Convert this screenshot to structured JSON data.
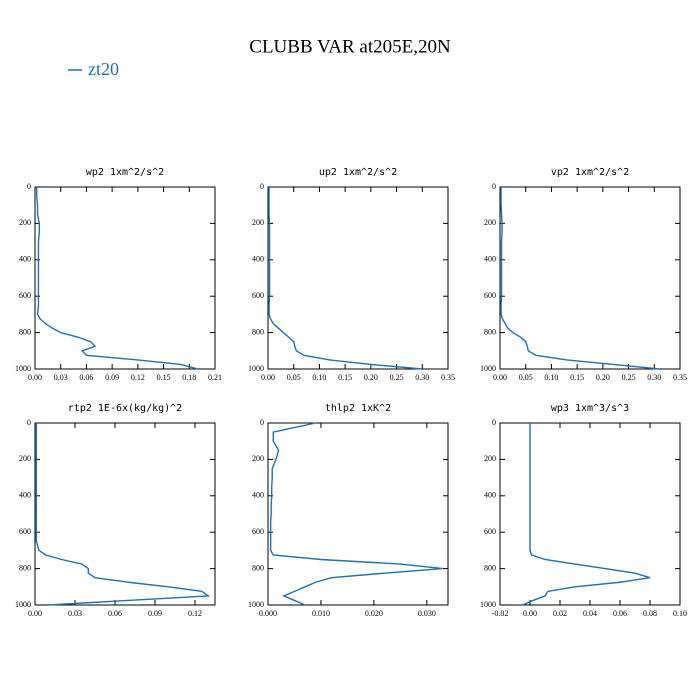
{
  "title": "CLUBB VAR at205E,20N",
  "chart_data": [
    {
      "type": "line",
      "title": "wp2   1xm^2/s^2",
      "invert_y": true,
      "y": [
        0,
        50,
        100,
        150,
        200,
        250,
        300,
        350,
        400,
        450,
        500,
        550,
        600,
        650,
        700,
        725,
        750,
        775,
        800,
        825,
        850,
        875,
        900,
        925,
        950,
        975,
        1000
      ],
      "series": [
        {
          "name": "zt20",
          "color": "#1f6fb4",
          "values": [
            0.002,
            0.002,
            0.003,
            0.003,
            0.005,
            0.005,
            0.004,
            0.004,
            0.004,
            0.004,
            0.004,
            0.004,
            0.004,
            0.004,
            0.003,
            0.006,
            0.012,
            0.02,
            0.03,
            0.05,
            0.065,
            0.07,
            0.055,
            0.06,
            0.12,
            0.17,
            0.19
          ]
        }
      ],
      "xlim": [
        0,
        0.21
      ],
      "xticks": [
        {
          "value": 0,
          "label": "0.00"
        },
        0.03,
        0.06,
        0.09,
        0.12,
        0.15,
        0.18,
        0.21
      ],
      "ylim": [
        0,
        1000
      ],
      "yticks": [
        0,
        200,
        400,
        600,
        800,
        1000
      ]
    },
    {
      "type": "line",
      "title": "up2   1xm^2/s^2",
      "invert_y": true,
      "y": [
        0,
        50,
        100,
        150,
        200,
        250,
        300,
        350,
        400,
        450,
        500,
        550,
        600,
        650,
        700,
        725,
        750,
        775,
        800,
        825,
        850,
        875,
        900,
        925,
        950,
        975,
        1000
      ],
      "series": [
        {
          "name": "zt20",
          "color": "#1f6fb4",
          "values": [
            0.002,
            0.002,
            0.002,
            0.002,
            0.003,
            0.003,
            0.003,
            0.003,
            0.003,
            0.003,
            0.003,
            0.003,
            0.003,
            0.002,
            0.002,
            0.005,
            0.01,
            0.02,
            0.03,
            0.04,
            0.05,
            0.052,
            0.055,
            0.07,
            0.12,
            0.2,
            0.3
          ]
        }
      ],
      "xlim": [
        0,
        0.35
      ],
      "xticks": [
        {
          "value": 0,
          "label": "0.00"
        },
        0.05,
        {
          "value": 0.1,
          "label": "0.10"
        },
        0.15,
        {
          "value": 0.2,
          "label": "0.20"
        },
        0.25,
        {
          "value": 0.3,
          "label": "0.30"
        },
        0.35
      ],
      "ylim": [
        0,
        1000
      ],
      "yticks": [
        0,
        200,
        400,
        600,
        800,
        1000
      ]
    },
    {
      "type": "line",
      "title": "vp2   1xm^2/s^2",
      "invert_y": true,
      "y": [
        0,
        50,
        100,
        150,
        200,
        250,
        300,
        350,
        400,
        450,
        500,
        550,
        600,
        650,
        700,
        725,
        750,
        775,
        800,
        825,
        850,
        875,
        900,
        925,
        950,
        975,
        1000
      ],
      "series": [
        {
          "name": "zt20",
          "color": "#1f6fb4",
          "values": [
            0.002,
            0.002,
            0.002,
            0.003,
            0.004,
            0.004,
            0.003,
            0.003,
            0.003,
            0.003,
            0.003,
            0.003,
            0.003,
            0.002,
            0.002,
            0.005,
            0.01,
            0.015,
            0.025,
            0.04,
            0.05,
            0.053,
            0.055,
            0.07,
            0.13,
            0.22,
            0.31
          ]
        }
      ],
      "xlim": [
        0,
        0.35
      ],
      "xticks": [
        {
          "value": 0,
          "label": "0.00"
        },
        0.05,
        {
          "value": 0.1,
          "label": "0.10"
        },
        0.15,
        {
          "value": 0.2,
          "label": "0.20"
        },
        0.25,
        {
          "value": 0.3,
          "label": "0.30"
        },
        0.35
      ],
      "ylim": [
        0,
        1000
      ],
      "yticks": [
        0,
        200,
        400,
        600,
        800,
        1000
      ]
    },
    {
      "type": "line",
      "title": "rtp2   1E-6x(kg/kg)^2",
      "invert_y": true,
      "y": [
        0,
        50,
        100,
        150,
        200,
        250,
        300,
        350,
        400,
        450,
        500,
        550,
        600,
        650,
        700,
        725,
        750,
        775,
        800,
        825,
        850,
        875,
        900,
        925,
        950,
        975,
        1000
      ],
      "series": [
        {
          "name": "zt20",
          "color": "#1f6fb4",
          "values": [
            0.001,
            0.001,
            0.001,
            0.001,
            0.001,
            0.001,
            0.001,
            0.001,
            0.001,
            0.001,
            0.001,
            0.001,
            0.001,
            0.001,
            0.003,
            0.008,
            0.02,
            0.035,
            0.04,
            0.04,
            0.045,
            0.07,
            0.1,
            0.125,
            0.13,
            0.07,
            0.01
          ]
        }
      ],
      "xlim": [
        0,
        0.135
      ],
      "xticks": [
        {
          "value": 0,
          "label": "0.00"
        },
        0.03,
        0.06,
        0.09,
        0.12
      ],
      "ylim": [
        0,
        1000
      ],
      "yticks": [
        0,
        200,
        400,
        600,
        800,
        1000
      ]
    },
    {
      "type": "line",
      "title": "thlp2   1xK^2",
      "invert_y": true,
      "y": [
        0,
        50,
        100,
        150,
        200,
        250,
        300,
        350,
        400,
        450,
        500,
        550,
        600,
        650,
        700,
        725,
        750,
        775,
        800,
        825,
        850,
        875,
        900,
        925,
        950,
        975,
        1000
      ],
      "series": [
        {
          "name": "zt20",
          "color": "#1f6fb4",
          "values": [
            0.009,
            0.001,
            0.001,
            0.002,
            0.0015,
            0.0008,
            0.0008,
            0.0007,
            0.0007,
            0.0006,
            0.0006,
            0.0005,
            0.0005,
            0.0005,
            0.0005,
            0.001,
            0.01,
            0.025,
            0.033,
            0.022,
            0.012,
            0.009,
            0.007,
            0.005,
            0.003,
            0.005,
            0.007
          ]
        }
      ],
      "xlim": [
        0,
        0.034
      ],
      "xticks": [
        {
          "value": 0,
          "label": "0.000"
        },
        {
          "value": 0.01,
          "label": "0.010"
        },
        {
          "value": 0.02,
          "label": "0.020"
        },
        {
          "value": 0.03,
          "label": "0.030"
        }
      ],
      "ylim": [
        0,
        1000
      ],
      "yticks": [
        0,
        200,
        400,
        600,
        800,
        1000
      ]
    },
    {
      "type": "line",
      "title": "wp3   1xm^3/s^3",
      "invert_y": true,
      "y": [
        0,
        50,
        100,
        150,
        200,
        250,
        300,
        350,
        400,
        450,
        500,
        550,
        600,
        650,
        700,
        725,
        750,
        775,
        800,
        825,
        850,
        875,
        900,
        925,
        950,
        975,
        1000
      ],
      "series": [
        {
          "name": "zt20",
          "color": "#1f6fb4",
          "values": [
            0,
            0,
            0,
            0,
            0,
            0,
            0,
            0,
            0,
            0,
            0,
            0,
            0,
            0,
            0,
            0.001,
            0.01,
            0.03,
            0.05,
            0.07,
            0.08,
            0.06,
            0.03,
            0.012,
            0.01,
            0.002,
            -0.005
          ]
        }
      ],
      "xlim": [
        -0.02,
        0.1
      ],
      "xticks": [
        -0.02,
        {
          "value": 0,
          "label": "0.00"
        },
        0.02,
        0.04,
        0.06,
        0.08,
        {
          "value": 0.1,
          "label": "0.10"
        }
      ],
      "ylim": [
        0,
        1000
      ],
      "yticks": [
        0,
        200,
        400,
        600,
        800,
        1000
      ]
    }
  ]
}
